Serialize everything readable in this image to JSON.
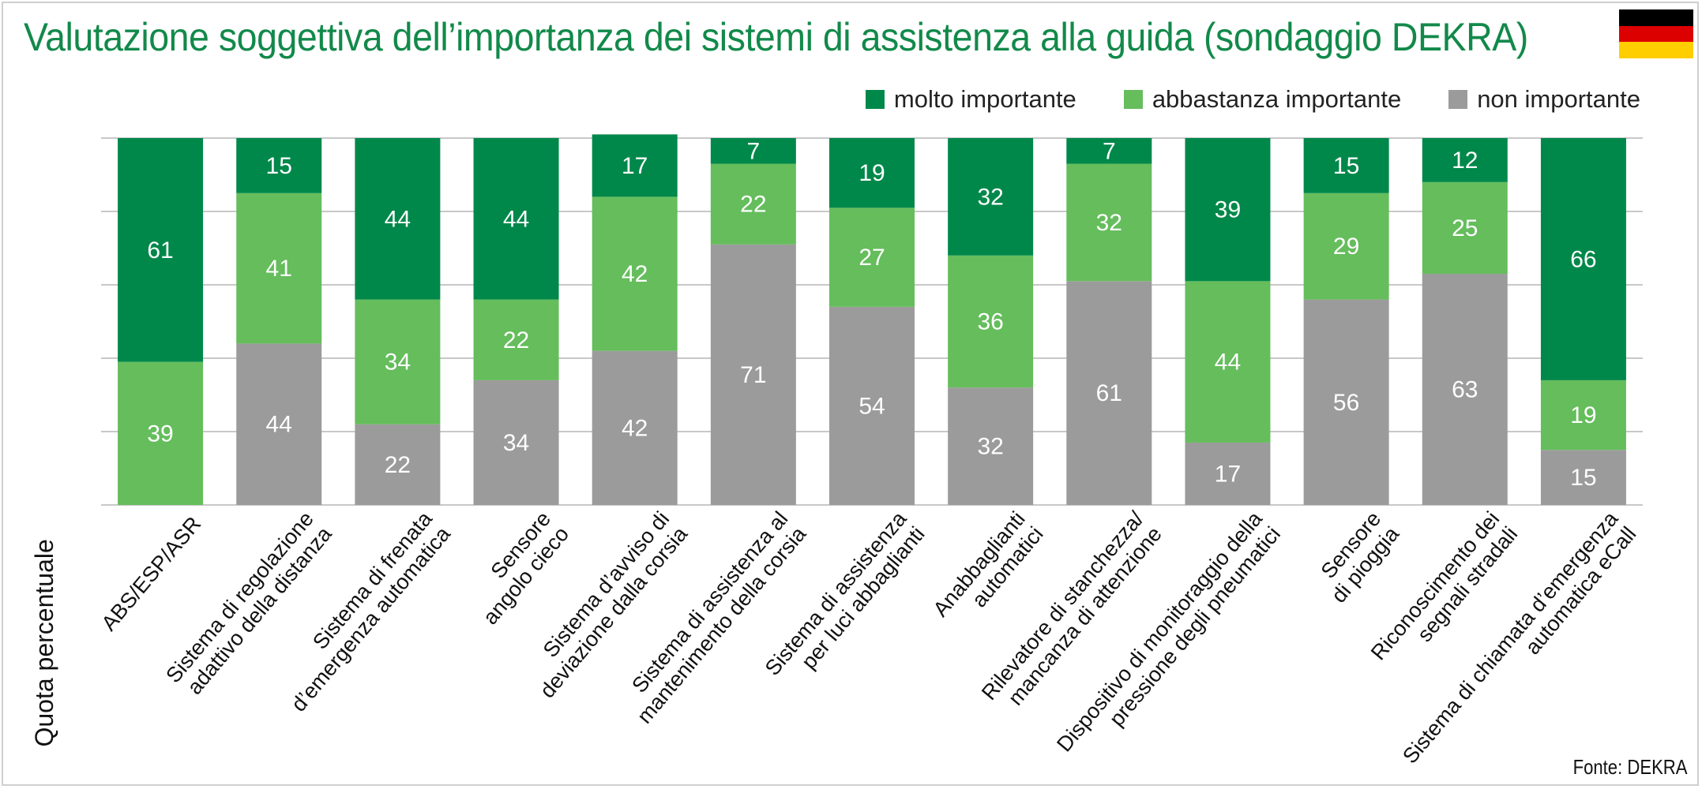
{
  "title": "Valutazione soggettiva dell’importanza dei sistemi di assistenza alla guida (sondaggio DEKRA)",
  "flag_colors": [
    "#000000",
    "#dd0000",
    "#ffce00"
  ],
  "source": "Fonte: DEKRA",
  "chart_data": {
    "type": "bar",
    "stacked": true,
    "orientation": "vertical",
    "ylabel": "Quota percentuale",
    "ylim": [
      0,
      100
    ],
    "grid": true,
    "legend_position": "top-right",
    "categories": [
      [
        "ABS/ESP/ASR"
      ],
      [
        "Sistema di regolazione",
        "adattivo della distanza"
      ],
      [
        "Sistema di frenata",
        "d’emergenza automatica"
      ],
      [
        "Sensore",
        "angolo cieco"
      ],
      [
        "Sistema d’avviso di",
        "deviazione dalla corsia"
      ],
      [
        "Sistema di assistenza al",
        "mantenimento della corsia"
      ],
      [
        "Sistema di assistenza",
        "per luci abbaglianti"
      ],
      [
        "Anabbaglianti",
        "automatici"
      ],
      [
        "Rilevatore di stanchezza/",
        "mancanza di attenzione"
      ],
      [
        "Dispositivo di monitoraggio della",
        "pressione degli pneumatici"
      ],
      [
        "Sensore",
        "di pioggia"
      ],
      [
        "Riconoscimento dei",
        "segnali stradali"
      ],
      [
        "Sistema di chiamata d’emergenza",
        "automatica eCall"
      ]
    ],
    "series": [
      {
        "name": "non importante",
        "color": "#9b9b9b",
        "values": [
          0,
          44,
          22,
          34,
          42,
          71,
          54,
          32,
          61,
          17,
          56,
          63,
          15
        ]
      },
      {
        "name": "abbastanza importante",
        "color": "#65bd5c",
        "values": [
          39,
          41,
          34,
          22,
          42,
          22,
          27,
          36,
          32,
          44,
          29,
          25,
          19
        ]
      },
      {
        "name": "molto importante",
        "color": "#00884a",
        "values": [
          61,
          15,
          44,
          44,
          17,
          7,
          19,
          32,
          7,
          39,
          15,
          12,
          66
        ]
      }
    ],
    "legend_order": [
      "molto importante",
      "abbastanza importante",
      "non importante"
    ]
  }
}
